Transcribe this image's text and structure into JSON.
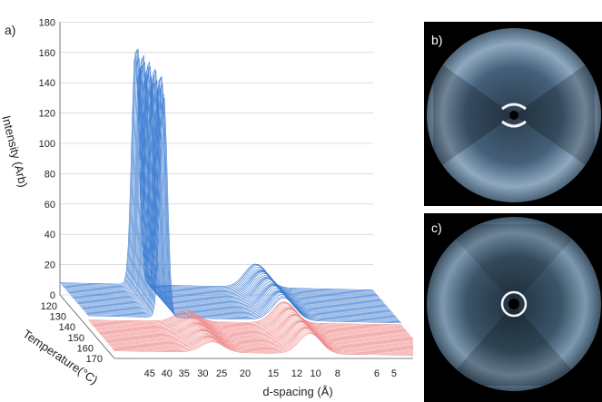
{
  "panels": {
    "a": "a)",
    "b": "b)",
    "c": "c)"
  },
  "chart_data": {
    "type": "line",
    "title": "",
    "xlabel": "d-spacing (Å)",
    "ylabel": "Intensity (Arb)",
    "zlabel": "Temperature(°C)",
    "x_ticks": [
      "45",
      "40",
      "35",
      "30",
      "25",
      "20",
      "15",
      "12",
      "10",
      "8",
      "6",
      "5"
    ],
    "y_ticks": [
      "0",
      "20",
      "40",
      "60",
      "80",
      "100",
      "120",
      "140",
      "160",
      "180"
    ],
    "z_ticks": [
      "120",
      "130",
      "140",
      "150",
      "160",
      "170"
    ],
    "ylim": [
      0,
      180
    ],
    "zlim": [
      115,
      175
    ],
    "series": [
      {
        "color": "#3a7ad1",
        "temperature_range": [
          115,
          146
        ],
        "peaks": [
          {
            "d_spacing": 32,
            "intensity": 165
          },
          {
            "d_spacing": 10,
            "intensity": 20
          }
        ],
        "baseline": 8
      },
      {
        "color": "#ee8a8a",
        "temperature_range": [
          146,
          175
        ],
        "peaks": [
          {
            "d_spacing": 26,
            "intensity": 10
          },
          {
            "d_spacing": 10,
            "intensity": 17
          }
        ],
        "baseline": 5
      }
    ]
  },
  "colors": {
    "blue": "#3a7ad1",
    "red": "#ee8a8a",
    "grid": "#c8c8c8",
    "axis": "#555555"
  }
}
